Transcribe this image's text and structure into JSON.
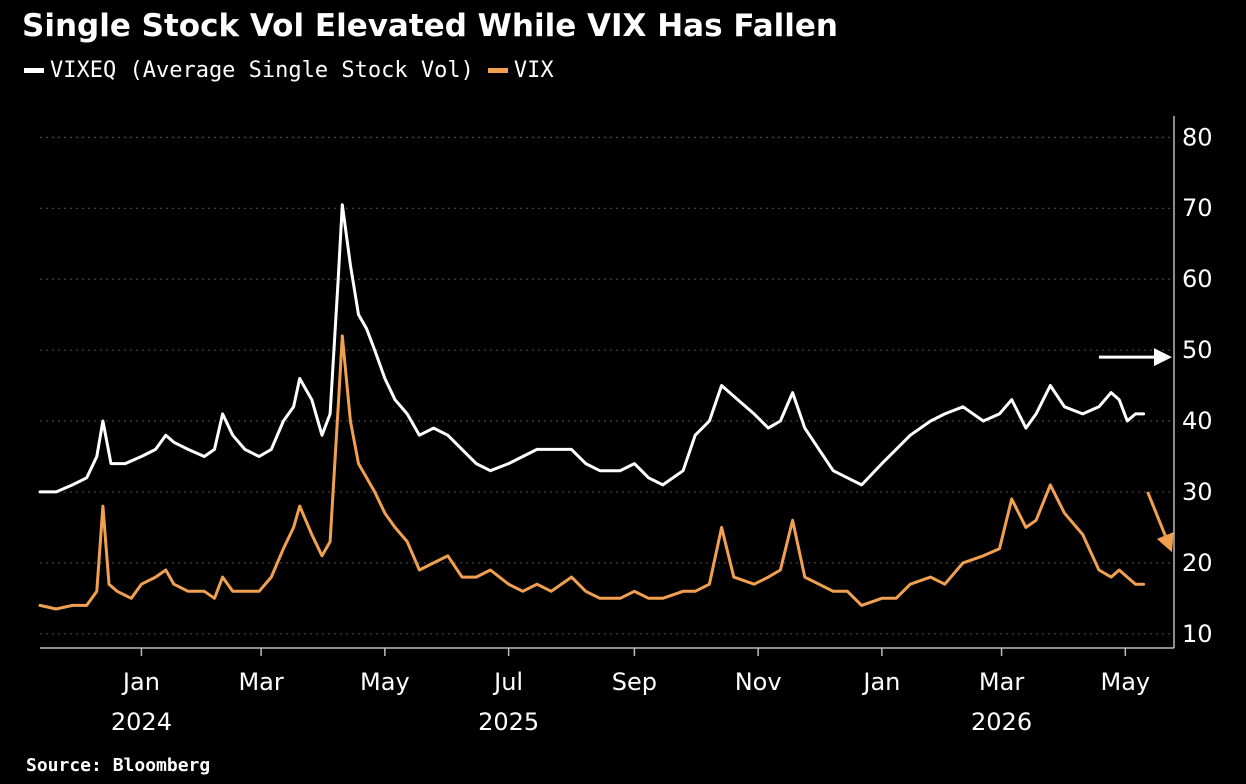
{
  "title": "Single Stock Vol Elevated While VIX Has Fallen",
  "source": "Source: Bloomberg",
  "colors": {
    "background": "#000000",
    "vixeq": "#ffffff",
    "vix": "#f0a050",
    "grid": "#555555"
  },
  "chart_data": {
    "type": "line",
    "title": "Single Stock Vol Elevated While VIX Has Fallen",
    "xlabel": "",
    "ylabel": "",
    "ylim": [
      10,
      80
    ],
    "yticks": [
      10,
      20,
      30,
      40,
      50,
      60,
      70,
      80
    ],
    "y_axis_side": "right",
    "grid": "horizontal dotted",
    "legend_position": "top-left",
    "xlim": [
      "2024-11-12",
      "2026-05-25"
    ],
    "xticks": [
      {
        "date": "2025-01-01",
        "label": "Jan",
        "year": "2024"
      },
      {
        "date": "2025-03-01",
        "label": "Mar",
        "year": ""
      },
      {
        "date": "2025-05-01",
        "label": "May",
        "year": ""
      },
      {
        "date": "2025-07-01",
        "label": "Jul",
        "year": "2025"
      },
      {
        "date": "2025-09-01",
        "label": "Sep",
        "year": ""
      },
      {
        "date": "2025-11-01",
        "label": "Nov",
        "year": ""
      },
      {
        "date": "2026-01-01",
        "label": "Jan",
        "year": ""
      },
      {
        "date": "2026-03-01",
        "label": "Mar",
        "year": "2026"
      },
      {
        "date": "2026-05-01",
        "label": "May",
        "year": ""
      }
    ],
    "series": [
      {
        "name": "VIXEQ (Average Single Stock Vol)",
        "color": "#ffffff",
        "points": [
          [
            "2024-11-12",
            30
          ],
          [
            "2024-11-20",
            30
          ],
          [
            "2024-11-28",
            31
          ],
          [
            "2024-12-05",
            32
          ],
          [
            "2024-12-10",
            35
          ],
          [
            "2024-12-13",
            40
          ],
          [
            "2024-12-17",
            34
          ],
          [
            "2024-12-24",
            34
          ],
          [
            "2025-01-01",
            35
          ],
          [
            "2025-01-08",
            36
          ],
          [
            "2025-01-13",
            38
          ],
          [
            "2025-01-17",
            37
          ],
          [
            "2025-01-24",
            36
          ],
          [
            "2025-02-01",
            35
          ],
          [
            "2025-02-06",
            36
          ],
          [
            "2025-02-10",
            41
          ],
          [
            "2025-02-15",
            38
          ],
          [
            "2025-02-21",
            36
          ],
          [
            "2025-02-28",
            35
          ],
          [
            "2025-03-06",
            36
          ],
          [
            "2025-03-12",
            40
          ],
          [
            "2025-03-17",
            42
          ],
          [
            "2025-03-20",
            46
          ],
          [
            "2025-03-26",
            43
          ],
          [
            "2025-03-31",
            38
          ],
          [
            "2025-04-04",
            41
          ],
          [
            "2025-04-08",
            60
          ],
          [
            "2025-04-10",
            70.5
          ],
          [
            "2025-04-14",
            62
          ],
          [
            "2025-04-18",
            55
          ],
          [
            "2025-04-22",
            53
          ],
          [
            "2025-04-26",
            50
          ],
          [
            "2025-05-01",
            46
          ],
          [
            "2025-05-06",
            43
          ],
          [
            "2025-05-12",
            41
          ],
          [
            "2025-05-18",
            38
          ],
          [
            "2025-05-25",
            39
          ],
          [
            "2025-06-01",
            38
          ],
          [
            "2025-06-08",
            36
          ],
          [
            "2025-06-15",
            34
          ],
          [
            "2025-06-22",
            33
          ],
          [
            "2025-07-01",
            34
          ],
          [
            "2025-07-08",
            35
          ],
          [
            "2025-07-15",
            36
          ],
          [
            "2025-07-22",
            36
          ],
          [
            "2025-08-01",
            36
          ],
          [
            "2025-08-08",
            34
          ],
          [
            "2025-08-15",
            33
          ],
          [
            "2025-08-25",
            33
          ],
          [
            "2025-09-01",
            34
          ],
          [
            "2025-09-08",
            32
          ],
          [
            "2025-09-15",
            31
          ],
          [
            "2025-09-25",
            33
          ],
          [
            "2025-10-01",
            38
          ],
          [
            "2025-10-08",
            40
          ],
          [
            "2025-10-14",
            45
          ],
          [
            "2025-10-22",
            43
          ],
          [
            "2025-10-30",
            41
          ],
          [
            "2025-11-06",
            39
          ],
          [
            "2025-11-12",
            40
          ],
          [
            "2025-11-18",
            44
          ],
          [
            "2025-11-24",
            39
          ],
          [
            "2025-12-01",
            36
          ],
          [
            "2025-12-08",
            33
          ],
          [
            "2025-12-15",
            32
          ],
          [
            "2025-12-22",
            31
          ],
          [
            "2026-01-01",
            34
          ],
          [
            "2026-01-08",
            36
          ],
          [
            "2026-01-15",
            38
          ],
          [
            "2026-01-25",
            40
          ],
          [
            "2026-02-01",
            41
          ],
          [
            "2026-02-10",
            42
          ],
          [
            "2026-02-20",
            40
          ],
          [
            "2026-02-28",
            41
          ],
          [
            "2026-03-06",
            43
          ],
          [
            "2026-03-13",
            39
          ],
          [
            "2026-03-18",
            41
          ],
          [
            "2026-03-25",
            45
          ],
          [
            "2026-04-01",
            42
          ],
          [
            "2026-04-10",
            41
          ],
          [
            "2026-04-18",
            42
          ],
          [
            "2026-04-24",
            44
          ],
          [
            "2026-04-28",
            43
          ],
          [
            "2026-05-02",
            40
          ],
          [
            "2026-05-06",
            41
          ],
          [
            "2026-05-10",
            41
          ]
        ]
      },
      {
        "name": "VIX",
        "color": "#f0a050",
        "points": [
          [
            "2024-11-12",
            14
          ],
          [
            "2024-11-20",
            13.5
          ],
          [
            "2024-11-28",
            14
          ],
          [
            "2024-12-05",
            14
          ],
          [
            "2024-12-10",
            16
          ],
          [
            "2024-12-13",
            28
          ],
          [
            "2024-12-16",
            17
          ],
          [
            "2024-12-20",
            16
          ],
          [
            "2024-12-27",
            15
          ],
          [
            "2025-01-01",
            17
          ],
          [
            "2025-01-08",
            18
          ],
          [
            "2025-01-13",
            19
          ],
          [
            "2025-01-17",
            17
          ],
          [
            "2025-01-24",
            16
          ],
          [
            "2025-02-01",
            16
          ],
          [
            "2025-02-06",
            15
          ],
          [
            "2025-02-10",
            18
          ],
          [
            "2025-02-15",
            16
          ],
          [
            "2025-02-21",
            16
          ],
          [
            "2025-02-28",
            16
          ],
          [
            "2025-03-06",
            18
          ],
          [
            "2025-03-12",
            22
          ],
          [
            "2025-03-17",
            25
          ],
          [
            "2025-03-20",
            28
          ],
          [
            "2025-03-26",
            24
          ],
          [
            "2025-03-31",
            21
          ],
          [
            "2025-04-04",
            23
          ],
          [
            "2025-04-08",
            42
          ],
          [
            "2025-04-10",
            52
          ],
          [
            "2025-04-14",
            40
          ],
          [
            "2025-04-18",
            34
          ],
          [
            "2025-04-22",
            32
          ],
          [
            "2025-04-26",
            30
          ],
          [
            "2025-05-01",
            27
          ],
          [
            "2025-05-06",
            25
          ],
          [
            "2025-05-12",
            23
          ],
          [
            "2025-05-18",
            19
          ],
          [
            "2025-05-25",
            20
          ],
          [
            "2025-06-01",
            21
          ],
          [
            "2025-06-08",
            18
          ],
          [
            "2025-06-15",
            18
          ],
          [
            "2025-06-22",
            19
          ],
          [
            "2025-07-01",
            17
          ],
          [
            "2025-07-08",
            16
          ],
          [
            "2025-07-15",
            17
          ],
          [
            "2025-07-22",
            16
          ],
          [
            "2025-08-01",
            18
          ],
          [
            "2025-08-08",
            16
          ],
          [
            "2025-08-15",
            15
          ],
          [
            "2025-08-25",
            15
          ],
          [
            "2025-09-01",
            16
          ],
          [
            "2025-09-08",
            15
          ],
          [
            "2025-09-15",
            15
          ],
          [
            "2025-09-25",
            16
          ],
          [
            "2025-10-01",
            16
          ],
          [
            "2025-10-08",
            17
          ],
          [
            "2025-10-14",
            25
          ],
          [
            "2025-10-20",
            18
          ],
          [
            "2025-10-30",
            17
          ],
          [
            "2025-11-06",
            18
          ],
          [
            "2025-11-12",
            19
          ],
          [
            "2025-11-18",
            26
          ],
          [
            "2025-11-24",
            18
          ],
          [
            "2025-12-01",
            17
          ],
          [
            "2025-12-08",
            16
          ],
          [
            "2025-12-15",
            16
          ],
          [
            "2025-12-22",
            14
          ],
          [
            "2026-01-01",
            15
          ],
          [
            "2026-01-08",
            15
          ],
          [
            "2026-01-15",
            17
          ],
          [
            "2026-01-25",
            18
          ],
          [
            "2026-02-01",
            17
          ],
          [
            "2026-02-10",
            20
          ],
          [
            "2026-02-20",
            21
          ],
          [
            "2026-02-28",
            22
          ],
          [
            "2026-03-06",
            29
          ],
          [
            "2026-03-13",
            25
          ],
          [
            "2026-03-18",
            26
          ],
          [
            "2026-03-25",
            31
          ],
          [
            "2026-04-01",
            27
          ],
          [
            "2026-04-10",
            24
          ],
          [
            "2026-04-18",
            19
          ],
          [
            "2026-04-24",
            18
          ],
          [
            "2026-04-28",
            19
          ],
          [
            "2026-05-02",
            18
          ],
          [
            "2026-05-06",
            17
          ],
          [
            "2026-05-10",
            17
          ]
        ]
      }
    ],
    "annotations": [
      {
        "kind": "arrow",
        "name": "vixeq-trend-arrow",
        "color": "#ffffff",
        "from": [
          "2026-04-18",
          49
        ],
        "to": [
          "2026-05-24",
          49
        ]
      },
      {
        "kind": "arrow",
        "name": "vix-trend-arrow",
        "color": "#f0a050",
        "from": [
          "2026-05-12",
          30
        ],
        "to": [
          "2026-05-24",
          21.5
        ]
      }
    ]
  }
}
